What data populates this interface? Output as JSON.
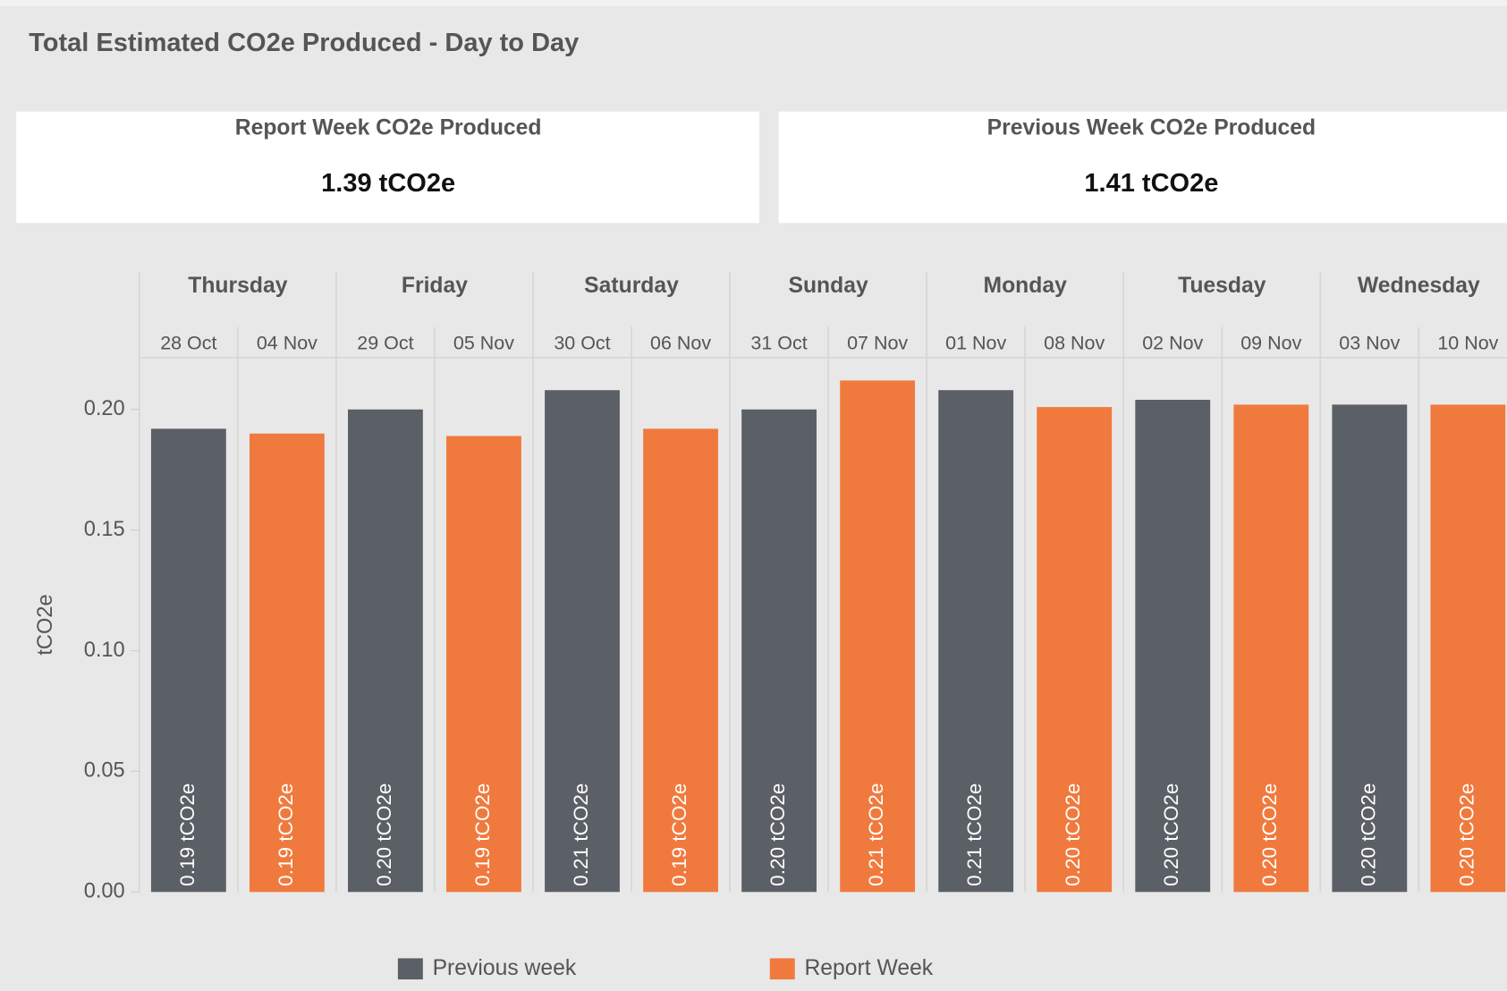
{
  "header": {
    "title": "Total Estimated CO2e Produced - Day to Day"
  },
  "cards": [
    {
      "title": "Report Week CO2e Produced",
      "value": "1.39 tCO2e"
    },
    {
      "title": "Previous Week CO2e Produced",
      "value": "1.41 tCO2e"
    }
  ],
  "chart_data": {
    "type": "bar",
    "y_label": "tCO2e",
    "categories": [
      "Thursday",
      "Friday",
      "Saturday",
      "Sunday",
      "Monday",
      "Tuesday",
      "Wednesday"
    ],
    "series": [
      {
        "name": "Previous week",
        "color": "#5b5f66",
        "dates": [
          "28 Oct",
          "29 Oct",
          "30 Oct",
          "31 Oct",
          "01 Nov",
          "02 Nov",
          "03 Nov"
        ],
        "values": [
          0.192,
          0.2,
          0.208,
          0.2,
          0.208,
          0.204,
          0.202
        ],
        "value_labels": [
          "0.19 tCO2e",
          "0.20 tCO2e",
          "0.21 tCO2e",
          "0.20 tCO2e",
          "0.21 tCO2e",
          "0.20 tCO2e",
          "0.20 tCO2e"
        ]
      },
      {
        "name": "Report Week",
        "color": "#f07a3e",
        "dates": [
          "04 Nov",
          "05 Nov",
          "06 Nov",
          "07 Nov",
          "08 Nov",
          "09 Nov",
          "10 Nov"
        ],
        "values": [
          0.19,
          0.189,
          0.192,
          0.212,
          0.201,
          0.202,
          0.202
        ],
        "value_labels": [
          "0.19 tCO2e",
          "0.19 tCO2e",
          "0.19 tCO2e",
          "0.21 tCO2e",
          "0.20 tCO2e",
          "0.20 tCO2e",
          "0.20 tCO2e"
        ]
      }
    ],
    "ylim": [
      0,
      0.2215
    ],
    "yticks": [
      {
        "value": 0,
        "label": "0.00"
      },
      0.05,
      {
        "value": 0.1,
        "label": "0.10"
      },
      0.15,
      {
        "value": 0.2,
        "label": "0.20"
      }
    ],
    "grid": false,
    "legend": "bottom"
  }
}
